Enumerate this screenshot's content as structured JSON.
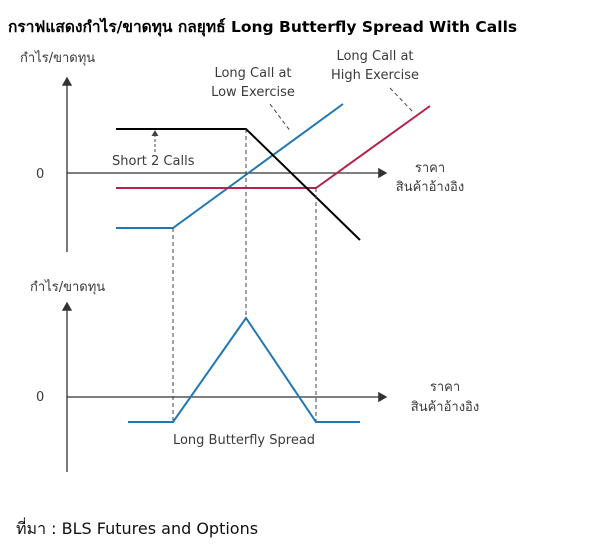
{
  "title": "กราฟแสดงกำไร/ขาดทุน กลยุทธ์ Long Butterfly Spread With Calls",
  "source": "ที่มา : BLS Futures and Options",
  "colors": {
    "long_call_low": "#1f77b4",
    "long_call_high": "#b5234a",
    "short_calls": "#000000",
    "axis": "#333333",
    "guide": "#444444"
  },
  "top_chart": {
    "y_axis_label": "กำไร/ขาดทุน",
    "zero_label": "0",
    "x_axis_label_line1": "ราคา",
    "x_axis_label_line2": "สินค้าอ้างอิง",
    "annotation_low_line1": "Long Call at",
    "annotation_low_line2": "Low Exercise",
    "annotation_high_line1": "Long Call at",
    "annotation_high_line2": "High Exercise",
    "annotation_short": "Short 2 Calls"
  },
  "bottom_chart": {
    "y_axis_label": "กำไร/ขาดทุน",
    "zero_label": "0",
    "x_axis_label_line1": "ราคา",
    "x_axis_label_line2": "สินค้าอ้างอิง",
    "annotation": "Long Butterfly Spread"
  }
}
